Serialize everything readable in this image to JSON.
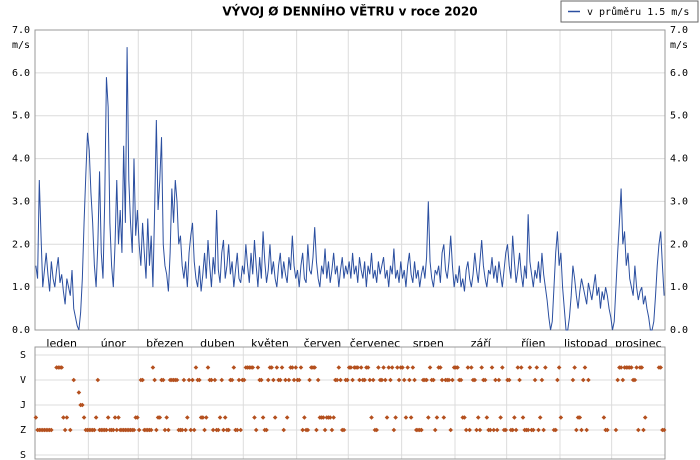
{
  "chart_data": [
    {
      "type": "line",
      "title": "VÝVOJ Ø DENNÍHO VĚTRU v roce 2020",
      "y_unit": "m/s",
      "series": [
        {
          "name": "v průměru 1.5 m/s",
          "color": "#2b4fa0",
          "values": [
            1.5,
            1.2,
            3.5,
            2.2,
            1.0,
            1.4,
            1.8,
            1.3,
            0.9,
            1.6,
            1.2,
            1.0,
            1.4,
            1.7,
            1.1,
            1.3,
            0.9,
            0.6,
            1.2,
            1.0,
            0.8,
            1.4,
            0.5,
            0.3,
            0.1,
            0.0,
            0.4,
            1.2,
            2.5,
            3.6,
            4.6,
            4.2,
            3.2,
            2.5,
            1.5,
            1.0,
            2.0,
            3.7,
            1.8,
            1.2,
            3.0,
            5.9,
            5.2,
            2.5,
            1.5,
            1.0,
            2.0,
            3.5,
            2.0,
            2.8,
            1.8,
            4.3,
            2.5,
            6.6,
            3.5,
            2.5,
            1.8,
            4.0,
            2.2,
            2.8,
            2.0,
            1.5,
            2.5,
            1.8,
            1.2,
            2.6,
            1.5,
            2.2,
            1.0,
            2.8,
            4.9,
            2.8,
            3.5,
            4.5,
            2.0,
            1.5,
            1.3,
            0.9,
            1.8,
            3.3,
            2.5,
            3.5,
            3.0,
            2.0,
            2.2,
            1.5,
            1.2,
            1.6,
            1.0,
            1.8,
            2.2,
            2.5,
            1.6,
            1.2,
            1.0,
            1.5,
            0.9,
            1.3,
            1.8,
            1.2,
            2.1,
            1.5,
            1.0,
            1.7,
            1.3,
            2.8,
            1.4,
            1.1,
            1.8,
            2.1,
            1.2,
            1.5,
            2.0,
            1.3,
            1.6,
            1.0,
            1.4,
            1.8,
            1.2,
            1.1,
            1.5,
            1.3,
            2.0,
            1.5,
            1.1,
            1.8,
            1.3,
            2.1,
            1.5,
            1.0,
            1.7,
            1.2,
            2.3,
            1.6,
            1.1,
            1.4,
            2.0,
            1.3,
            1.6,
            1.2,
            1.0,
            1.5,
            1.8,
            1.2,
            1.6,
            1.3,
            1.1,
            1.7,
            1.4,
            2.2,
            1.5,
            1.2,
            1.4,
            1.0,
            1.5,
            1.8,
            1.2,
            1.1,
            2.0,
            1.4,
            1.3,
            1.7,
            2.4,
            1.6,
            1.2,
            1.0,
            1.5,
            1.3,
            1.9,
            1.2,
            1.6,
            1.1,
            1.4,
            1.8,
            1.3,
            1.5,
            1.0,
            1.4,
            1.7,
            1.2,
            1.5,
            1.3,
            1.6,
            1.2,
            1.8,
            1.3,
            1.5,
            1.1,
            1.7,
            1.4,
            1.2,
            1.6,
            1.0,
            1.5,
            1.3,
            1.8,
            1.2,
            1.4,
            1.1,
            1.6,
            1.3,
            1.5,
            1.7,
            1.2,
            1.4,
            1.0,
            1.5,
            1.3,
            1.9,
            1.2,
            1.4,
            1.1,
            1.6,
            1.2,
            1.4,
            1.0,
            1.5,
            1.8,
            1.3,
            1.1,
            1.6,
            1.2,
            1.4,
            1.0,
            1.3,
            1.5,
            1.2,
            1.7,
            3.0,
            1.6,
            1.2,
            1.0,
            1.4,
            1.3,
            1.5,
            1.1,
            1.8,
            2.0,
            1.4,
            1.2,
            1.6,
            2.2,
            1.5,
            1.0,
            1.3,
            1.1,
            1.5,
            1.0,
            1.2,
            0.9,
            1.4,
            1.6,
            1.2,
            1.0,
            1.3,
            1.8,
            1.4,
            1.1,
            1.6,
            2.1,
            1.5,
            1.2,
            1.0,
            1.4,
            1.3,
            1.7,
            1.2,
            1.5,
            1.1,
            1.6,
            1.3,
            1.0,
            1.4,
            1.8,
            2.0,
            1.5,
            1.2,
            2.2,
            1.6,
            1.1,
            1.4,
            1.8,
            1.3,
            1.0,
            1.5,
            1.2,
            2.7,
            1.6,
            1.3,
            1.0,
            1.4,
            1.2,
            1.6,
            1.1,
            1.8,
            1.3,
            1.0,
            0.7,
            0.3,
            0.0,
            0.2,
            1.0,
            1.8,
            2.3,
            1.5,
            1.8,
            1.0,
            0.5,
            0.0,
            0.0,
            0.3,
            0.8,
            1.5,
            1.2,
            0.8,
            0.5,
            0.9,
            1.2,
            1.0,
            0.8,
            0.6,
            1.1,
            0.9,
            0.7,
            1.0,
            1.3,
            0.8,
            1.0,
            0.5,
            0.9,
            0.7,
            1.0,
            0.8,
            0.5,
            0.3,
            0.0,
            0.2,
            1.0,
            1.8,
            2.5,
            3.3,
            2.0,
            2.3,
            1.5,
            1.8,
            1.2,
            1.0,
            0.8,
            1.5,
            1.0,
            0.7,
            0.9,
            1.0,
            0.6,
            0.8,
            0.5,
            0.3,
            0.0,
            0.0,
            0.2,
            0.8,
            1.5,
            2.0,
            2.3,
            1.5,
            0.8
          ]
        }
      ],
      "xlim": [
        0,
        366
      ],
      "xticks": [
        {
          "value": 0,
          "label": "leden"
        },
        {
          "value": 31,
          "label": "únor"
        },
        {
          "value": 60,
          "label": "březen"
        },
        {
          "value": 91,
          "label": "duben"
        },
        {
          "value": 121,
          "label": "květen"
        },
        {
          "value": 152,
          "label": "červen"
        },
        {
          "value": 182,
          "label": "červenec"
        },
        {
          "value": 213,
          "label": "srpen"
        },
        {
          "value": 244,
          "label": "září"
        },
        {
          "value": 274,
          "label": "říjen"
        },
        {
          "value": 305,
          "label": "listopad"
        },
        {
          "value": 335,
          "label": "prosinec"
        }
      ],
      "ylim": [
        0,
        7
      ],
      "yticks": [
        {
          "value": 0,
          "label": "0.0"
        },
        {
          "value": 1,
          "label": "1.0"
        },
        {
          "value": 2,
          "label": "2.0"
        },
        {
          "value": 3,
          "label": "3.0"
        },
        {
          "value": 4,
          "label": "4.0"
        },
        {
          "value": 5,
          "label": "5.0"
        },
        {
          "value": 6,
          "label": "6.0"
        },
        {
          "value": 7,
          "label": "7.0"
        }
      ],
      "grid": true,
      "legend": "top-right"
    },
    {
      "type": "scatter",
      "color": "#b4501e",
      "values": [
        225,
        270,
        270,
        270,
        270,
        270,
        270,
        270,
        270,
        270,
        null,
        null,
        45,
        45,
        45,
        45,
        225,
        270,
        225,
        null,
        270,
        null,
        90,
        null,
        null,
        135,
        180,
        180,
        225,
        270,
        270,
        270,
        270,
        270,
        270,
        225,
        90,
        270,
        270,
        270,
        270,
        270,
        225,
        270,
        270,
        270,
        225,
        270,
        225,
        270,
        270,
        270,
        270,
        270,
        270,
        270,
        270,
        270,
        225,
        225,
        270,
        90,
        90,
        270,
        270,
        270,
        270,
        270,
        45,
        90,
        270,
        225,
        225,
        90,
        90,
        270,
        225,
        270,
        90,
        90,
        90,
        90,
        90,
        270,
        270,
        270,
        90,
        270,
        225,
        90,
        270,
        90,
        270,
        45,
        90,
        90,
        225,
        225,
        270,
        225,
        45,
        90,
        90,
        270,
        90,
        270,
        270,
        225,
        90,
        270,
        225,
        270,
        270,
        90,
        90,
        45,
        270,
        270,
        90,
        270,
        90,
        90,
        45,
        45,
        45,
        45,
        45,
        225,
        270,
        45,
        90,
        90,
        225,
        270,
        270,
        90,
        45,
        45,
        90,
        225,
        45,
        90,
        90,
        45,
        270,
        90,
        225,
        90,
        45,
        45,
        90,
        45,
        90,
        90,
        45,
        270,
        225,
        270,
        270,
        90,
        45,
        45,
        45,
        270,
        90,
        225,
        225,
        225,
        270,
        225,
        225,
        225,
        270,
        225,
        90,
        90,
        45,
        90,
        270,
        270,
        90,
        90,
        45,
        45,
        90,
        45,
        45,
        45,
        90,
        45,
        90,
        90,
        45,
        45,
        90,
        225,
        90,
        270,
        270,
        45,
        90,
        90,
        45,
        90,
        225,
        45,
        90,
        45,
        270,
        225,
        45,
        90,
        45,
        45,
        90,
        225,
        45,
        90,
        225,
        45,
        90,
        270,
        270,
        270,
        270,
        90,
        90,
        90,
        225,
        45,
        90,
        90,
        270,
        225,
        45,
        45,
        90,
        225,
        90,
        90,
        90,
        270,
        90,
        45,
        45,
        45,
        90,
        90,
        225,
        225,
        270,
        45,
        270,
        45,
        90,
        90,
        270,
        225,
        270,
        45,
        90,
        90,
        225,
        270,
        270,
        45,
        270,
        90,
        270,
        90,
        225,
        45,
        270,
        270,
        90,
        90,
        270,
        270,
        225,
        270,
        45,
        90,
        45,
        225,
        270,
        270,
        270,
        45,
        270,
        270,
        90,
        45,
        270,
        225,
        90,
        270,
        45,
        null,
        null,
        null,
        null,
        270,
        270,
        90,
        45,
        225,
        null,
        null,
        null,
        null,
        null,
        null,
        90,
        45,
        270,
        225,
        225,
        270,
        90,
        45,
        270,
        90,
        null,
        null,
        null,
        null,
        null,
        null,
        null,
        null,
        225,
        270,
        270,
        null,
        null,
        null,
        null,
        270,
        90,
        45,
        45,
        90,
        45,
        45,
        45,
        45,
        45,
        90,
        90,
        45,
        270,
        45,
        45,
        270,
        225,
        null,
        null,
        null,
        null,
        null,
        null,
        null,
        45,
        45,
        270,
        270
      ],
      "xlim": [
        0,
        366
      ],
      "xticks": [
        0,
        31,
        60,
        91,
        121,
        152,
        182,
        213,
        244,
        274,
        305,
        335
      ],
      "ylim": [
        0,
        360
      ],
      "y_reversed": true,
      "yticks": [
        {
          "value": 0,
          "label": "S"
        },
        {
          "value": 90,
          "label": "V"
        },
        {
          "value": 180,
          "label": "J"
        },
        {
          "value": 270,
          "label": "Z"
        },
        {
          "value": 360,
          "label": "S"
        }
      ],
      "grid": true
    }
  ]
}
